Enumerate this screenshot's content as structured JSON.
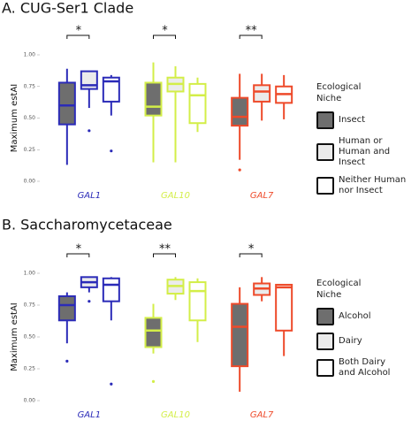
{
  "chart_data": [
    {
      "type": "box",
      "title": "A. CUG-Ser1 Clade",
      "y_label": "Maximum estAI",
      "legend_title": "Ecological\nNiche",
      "categories": [
        "GAL1",
        "GAL10",
        "GAL7"
      ],
      "category_colors": [
        "#2b2bb8",
        "#d3ee48",
        "#ee4a2a"
      ],
      "significance": [
        "*",
        "*",
        "**"
      ],
      "ylim": [
        0,
        1
      ],
      "yticks": [
        {
          "value": 0,
          "label": "0.00"
        },
        {
          "value": 0.25,
          "label": "0.25"
        },
        {
          "value": 0.5,
          "label": "0.50"
        },
        {
          "value": 0.75,
          "label": "0.75"
        },
        {
          "value": 1,
          "label": "1.00"
        }
      ],
      "grid": false,
      "series": [
        {
          "name": "Insect",
          "color": "#6e6e6e",
          "boxes": [
            {
              "min": 0.13,
              "q1": 0.45,
              "median": 0.6,
              "q3": 0.78,
              "max": 0.89,
              "outliers": []
            },
            {
              "min": 0.15,
              "q1": 0.52,
              "median": 0.59,
              "q3": 0.78,
              "max": 0.94,
              "outliers": []
            },
            {
              "min": 0.17,
              "q1": 0.44,
              "median": 0.51,
              "q3": 0.66,
              "max": 0.85,
              "outliers": [
                0.09
              ]
            }
          ]
        },
        {
          "name": "Human or\nHuman and Insect",
          "color": "#ebebeb",
          "boxes": [
            {
              "min": 0.58,
              "q1": 0.73,
              "median": 0.76,
              "q3": 0.87,
              "max": 0.87,
              "outliers": [
                0.4
              ]
            },
            {
              "min": 0.15,
              "q1": 0.71,
              "median": 0.77,
              "q3": 0.82,
              "max": 0.91,
              "outliers": []
            },
            {
              "min": 0.48,
              "q1": 0.63,
              "median": 0.71,
              "q3": 0.76,
              "max": 0.85,
              "outliers": []
            }
          ]
        },
        {
          "name": "Neither Human\nnor Insect",
          "color": "#ffffff",
          "boxes": [
            {
              "min": 0.52,
              "q1": 0.63,
              "median": 0.79,
              "q3": 0.82,
              "max": 0.84,
              "outliers": [
                0.24
              ]
            },
            {
              "min": 0.39,
              "q1": 0.46,
              "median": 0.68,
              "q3": 0.77,
              "max": 0.82,
              "outliers": []
            },
            {
              "min": 0.49,
              "q1": 0.62,
              "median": 0.69,
              "q3": 0.75,
              "max": 0.84,
              "outliers": []
            }
          ]
        }
      ]
    },
    {
      "type": "box",
      "title": "B. Saccharomycetaceae",
      "y_label": "Maximum estAI",
      "legend_title": "Ecological\nNiche",
      "categories": [
        "GAL1",
        "GAL10",
        "GAL7"
      ],
      "category_colors": [
        "#2b2bb8",
        "#d3ee48",
        "#ee4a2a"
      ],
      "significance": [
        "*",
        "**",
        "*"
      ],
      "ylim": [
        0,
        1
      ],
      "yticks": [
        {
          "value": 0,
          "label": "0.00"
        },
        {
          "value": 0.25,
          "label": "0.25"
        },
        {
          "value": 0.5,
          "label": "0.50"
        },
        {
          "value": 0.75,
          "label": "0.75"
        },
        {
          "value": 1,
          "label": "1.00"
        }
      ],
      "grid": false,
      "series": [
        {
          "name": "Alcohol",
          "color": "#6e6e6e",
          "boxes": [
            {
              "min": 0.45,
              "q1": 0.63,
              "median": 0.75,
              "q3": 0.82,
              "max": 0.85,
              "outliers": [
                0.31
              ]
            },
            {
              "min": 0.37,
              "q1": 0.42,
              "median": 0.55,
              "q3": 0.65,
              "max": 0.76,
              "outliers": [
                0.15
              ]
            },
            {
              "min": 0.07,
              "q1": 0.27,
              "median": 0.58,
              "q3": 0.76,
              "max": 0.89,
              "outliers": []
            }
          ]
        },
        {
          "name": "Dairy",
          "color": "#ebebeb",
          "boxes": [
            {
              "min": 0.85,
              "q1": 0.89,
              "median": 0.93,
              "q3": 0.97,
              "max": 0.97,
              "outliers": [
                0.78
              ]
            },
            {
              "min": 0.79,
              "q1": 0.84,
              "median": 0.9,
              "q3": 0.95,
              "max": 0.97,
              "outliers": []
            },
            {
              "min": 0.78,
              "q1": 0.83,
              "median": 0.88,
              "q3": 0.92,
              "max": 0.97,
              "outliers": []
            }
          ]
        },
        {
          "name": "Both Dairy\nand Alcohol",
          "color": "#ffffff",
          "boxes": [
            {
              "min": 0.63,
              "q1": 0.78,
              "median": 0.91,
              "q3": 0.96,
              "max": 0.97,
              "outliers": [
                0.13
              ]
            },
            {
              "min": 0.46,
              "q1": 0.63,
              "median": 0.86,
              "q3": 0.93,
              "max": 0.96,
              "outliers": []
            },
            {
              "min": 0.35,
              "q1": 0.55,
              "median": 0.89,
              "q3": 0.91,
              "max": 0.91,
              "outliers": []
            }
          ]
        }
      ]
    }
  ]
}
